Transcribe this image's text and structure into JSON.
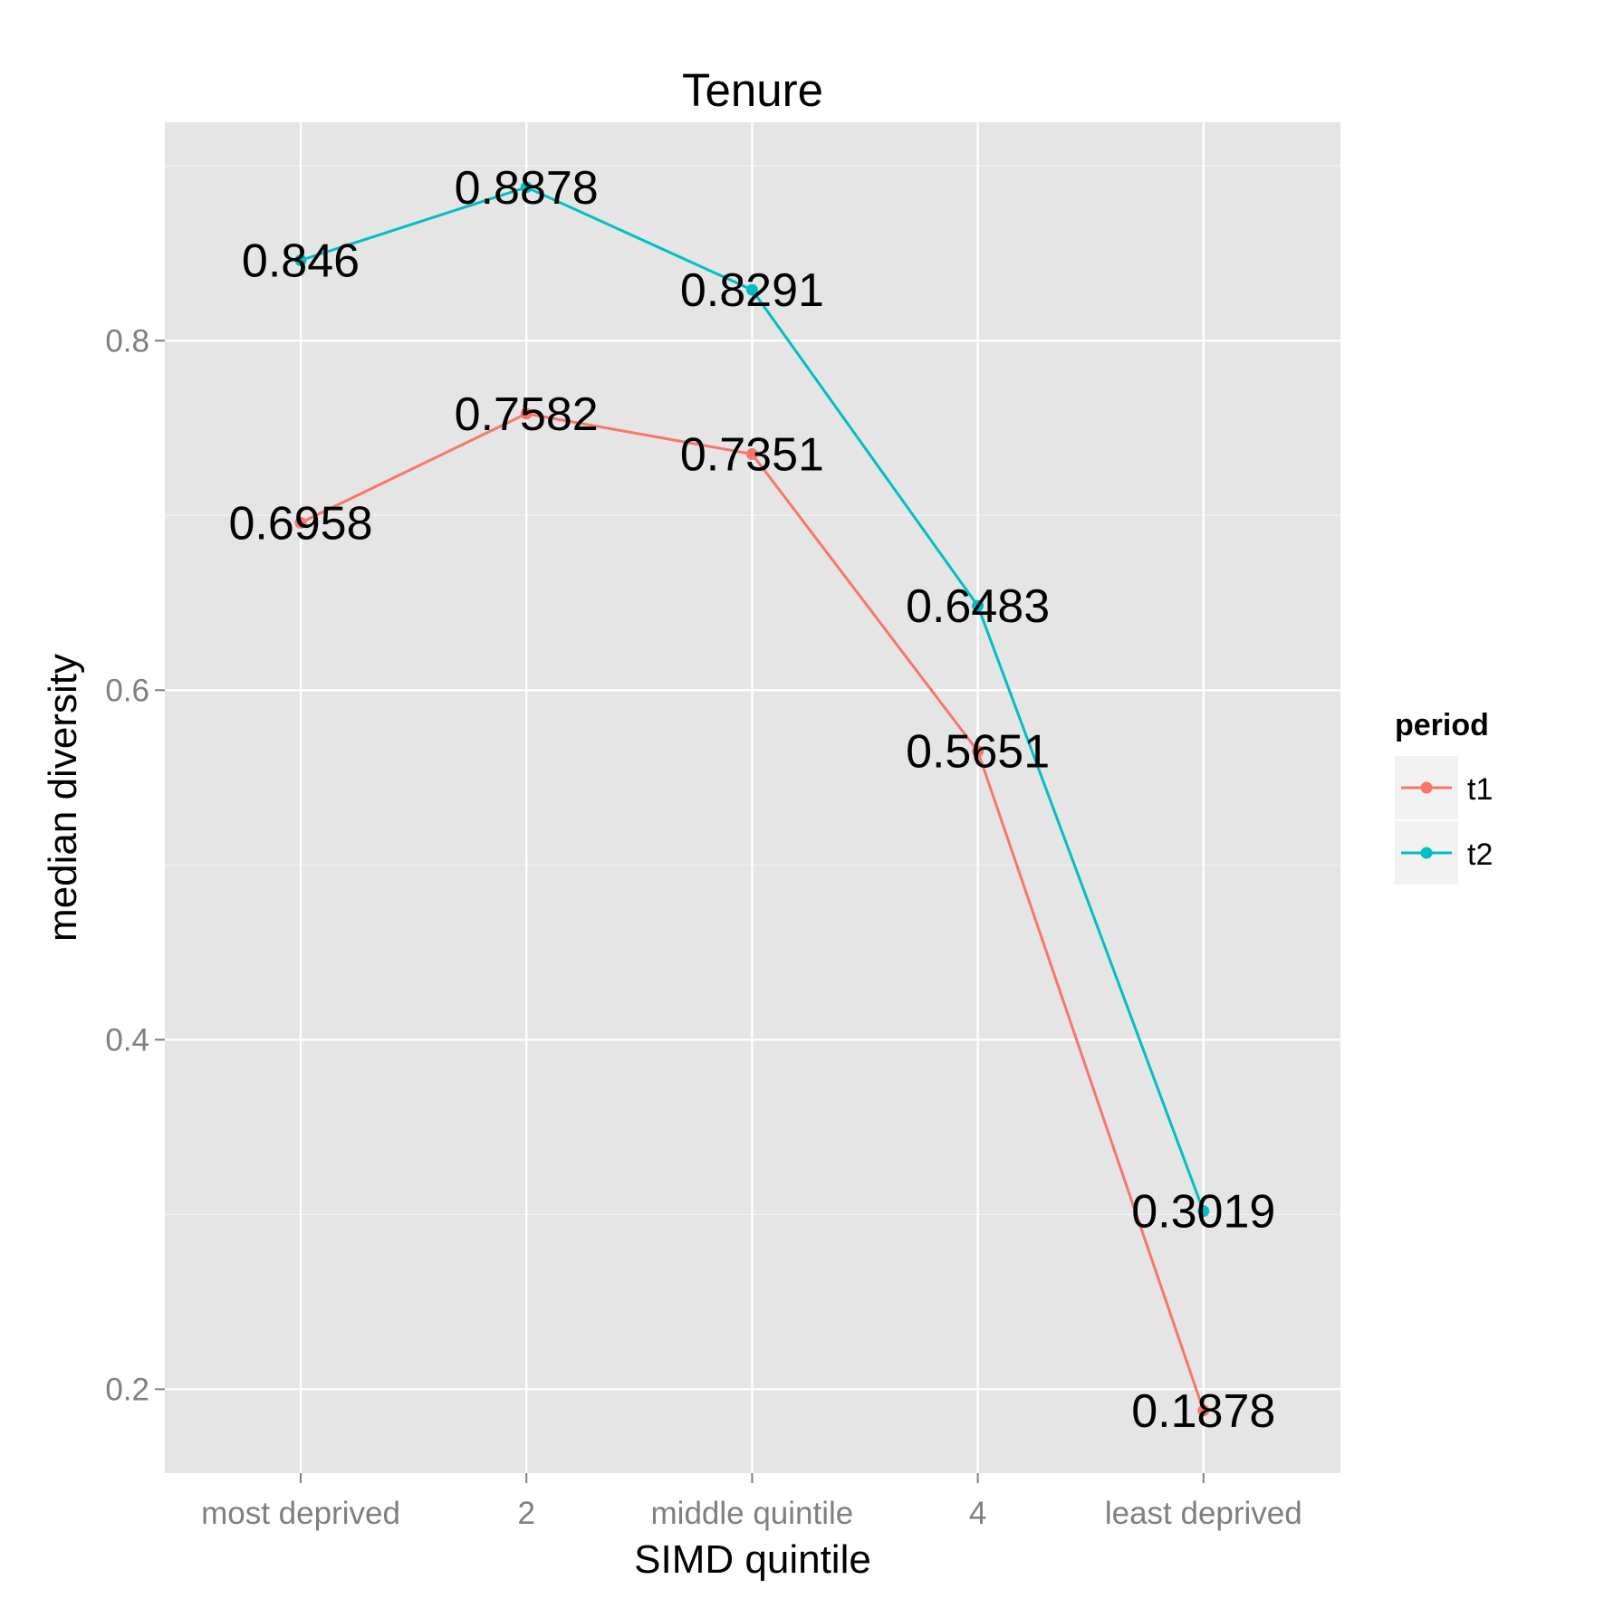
{
  "chart_data": {
    "type": "line",
    "title": "Tenure",
    "xlabel": "SIMD quintile",
    "ylabel": "median diversity",
    "categories": [
      "most deprived",
      "2",
      "middle quintile",
      "4",
      "least deprived"
    ],
    "ylim": [
      0.152,
      0.925
    ],
    "yticks": [
      0.2,
      0.4,
      0.6,
      0.8
    ],
    "ytick_labels": [
      "0.2",
      "0.4",
      "0.6",
      "0.8"
    ],
    "grid": true,
    "legend": {
      "title": "period",
      "position": "right"
    },
    "series": [
      {
        "name": "t1",
        "color": "#F8766D",
        "values": [
          0.6958,
          0.7582,
          0.7351,
          0.5651,
          0.1878
        ],
        "labels": [
          "0.6958",
          "0.7582",
          "0.7351",
          "0.5651",
          "0.1878"
        ]
      },
      {
        "name": "t2",
        "color": "#00BFC4",
        "values": [
          0.846,
          0.8878,
          0.8291,
          0.6483,
          0.3019
        ],
        "labels": [
          "0.846",
          "0.8878",
          "0.8291",
          "0.6483",
          "0.3019"
        ]
      }
    ]
  }
}
